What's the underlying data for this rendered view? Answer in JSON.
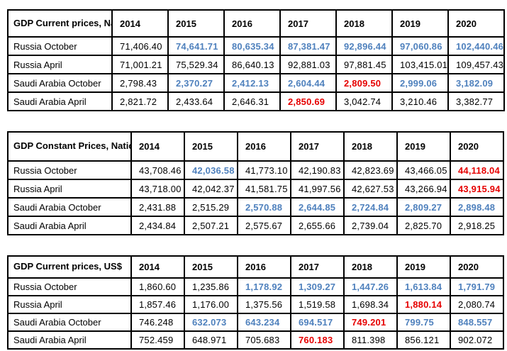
{
  "colors": {
    "revised_value_blue": "#4f81bd",
    "flagged_value_red": "#e60000",
    "default_text": "#000000",
    "table_border": "#000000"
  },
  "style_legend": {
    "k": "black-regular",
    "b": "blue-bold",
    "r": "red-bold"
  },
  "tables": [
    {
      "title": "GDP Current prices,\nNational Currency",
      "years": [
        "2014",
        "2015",
        "2016",
        "2017",
        "2018",
        "2019",
        "2020"
      ],
      "rows": [
        {
          "label": "Russia October",
          "values": [
            "71,406.40",
            "74,641.71",
            "80,635.34",
            "87,381.47",
            "92,896.44",
            "97,060.86",
            "102,440.46"
          ],
          "styles": [
            "k",
            "b",
            "b",
            "b",
            "b",
            "b",
            "b"
          ]
        },
        {
          "label": "Russia April",
          "values": [
            "71,001.21",
            "75,529.34",
            "86,640.13",
            "92,881.03",
            "97,881.45",
            "103,415.01",
            "109,457.43"
          ],
          "styles": [
            "k",
            "k",
            "k",
            "k",
            "k",
            "k",
            "k"
          ]
        },
        {
          "label": "Saudi Arabia October",
          "values": [
            "2,798.43",
            "2,370.27",
            "2,412.13",
            "2,604.44",
            "2,809.50",
            "2,999.06",
            "3,182.09"
          ],
          "styles": [
            "k",
            "b",
            "b",
            "b",
            "r",
            "b",
            "b"
          ]
        },
        {
          "label": "Saudi Arabia April",
          "values": [
            "2,821.72",
            "2,433.64",
            "2,646.31",
            "2,850.69",
            "3,042.74",
            "3,210.46",
            "3,382.77"
          ],
          "styles": [
            "k",
            "k",
            "k",
            "r",
            "k",
            "k",
            "k"
          ]
        }
      ]
    },
    {
      "title": "GDP Constant Prices,\nNational Currency",
      "years": [
        "2014",
        "2015",
        "2016",
        "2017",
        "2018",
        "2019",
        "2020"
      ],
      "rows": [
        {
          "label": "Russia October",
          "values": [
            "43,708.46",
            "42,036.58",
            "41,773.10",
            "42,190.83",
            "42,823.69",
            "43,466.05",
            "44,118.04"
          ],
          "styles": [
            "k",
            "b",
            "k",
            "k",
            "k",
            "k",
            "r"
          ]
        },
        {
          "label": "Russia April",
          "values": [
            "43,718.00",
            "42,042.37",
            "41,581.75",
            "41,997.56",
            "42,627.53",
            "43,266.94",
            "43,915.94"
          ],
          "styles": [
            "k",
            "k",
            "k",
            "k",
            "k",
            "k",
            "r"
          ]
        },
        {
          "label": "Saudi Arabia October",
          "values": [
            "2,431.88",
            "2,515.29",
            "2,570.88",
            "2,644.85",
            "2,724.84",
            "2,809.27",
            "2,898.48"
          ],
          "styles": [
            "k",
            "k",
            "b",
            "b",
            "b",
            "b",
            "b"
          ]
        },
        {
          "label": "Saudi Arabia April",
          "values": [
            "2,434.84",
            "2,507.21",
            "2,575.67",
            "2,655.66",
            "2,739.04",
            "2,825.70",
            "2,918.25"
          ],
          "styles": [
            "k",
            "k",
            "k",
            "k",
            "k",
            "k",
            "k"
          ]
        }
      ]
    },
    {
      "title": "GDP Current prices, US$",
      "years": [
        "2014",
        "2015",
        "2016",
        "2017",
        "2018",
        "2019",
        "2020"
      ],
      "rows": [
        {
          "label": "Russia October",
          "values": [
            "1,860.60",
            "1,235.86",
            "1,178.92",
            "1,309.27",
            "1,447.26",
            "1,613.84",
            "1,791.79"
          ],
          "styles": [
            "k",
            "k",
            "b",
            "b",
            "b",
            "b",
            "b"
          ]
        },
        {
          "label": "Russia April",
          "values": [
            "1,857.46",
            "1,176.00",
            "1,375.56",
            "1,519.58",
            "1,698.34",
            "1,880.14",
            "2,080.74"
          ],
          "styles": [
            "k",
            "k",
            "k",
            "k",
            "k",
            "r",
            "k"
          ]
        },
        {
          "label": "Saudi Arabia October",
          "values": [
            "746.248",
            "632.073",
            "643.234",
            "694.517",
            "749.201",
            "799.75",
            "848.557"
          ],
          "styles": [
            "k",
            "b",
            "b",
            "b",
            "r",
            "b",
            "b"
          ]
        },
        {
          "label": "Saudi Arabia April",
          "values": [
            "752.459",
            "648.971",
            "705.683",
            "760.183",
            "811.398",
            "856.121",
            "902.072"
          ],
          "styles": [
            "k",
            "k",
            "k",
            "r",
            "k",
            "k",
            "k"
          ]
        }
      ]
    }
  ],
  "chart_data": [
    {
      "type": "table",
      "title": "GDP Current prices, National Currency",
      "categories": [
        2014,
        2015,
        2016,
        2017,
        2018,
        2019,
        2020
      ],
      "series": [
        {
          "name": "Russia October",
          "values": [
            71406.4,
            74641.71,
            80635.34,
            87381.47,
            92896.44,
            97060.86,
            102440.46
          ]
        },
        {
          "name": "Russia April",
          "values": [
            71001.21,
            75529.34,
            86640.13,
            92881.03,
            97881.45,
            103415.01,
            109457.43
          ]
        },
        {
          "name": "Saudi Arabia October",
          "values": [
            2798.43,
            2370.27,
            2412.13,
            2604.44,
            2809.5,
            2999.06,
            3182.09
          ]
        },
        {
          "name": "Saudi Arabia April",
          "values": [
            2821.72,
            2433.64,
            2646.31,
            2850.69,
            3042.74,
            3210.46,
            3382.77
          ]
        }
      ]
    },
    {
      "type": "table",
      "title": "GDP Constant Prices, National Currency",
      "categories": [
        2014,
        2015,
        2016,
        2017,
        2018,
        2019,
        2020
      ],
      "series": [
        {
          "name": "Russia October",
          "values": [
            43708.46,
            42036.58,
            41773.1,
            42190.83,
            42823.69,
            43466.05,
            44118.04
          ]
        },
        {
          "name": "Russia April",
          "values": [
            43718.0,
            42042.37,
            41581.75,
            41997.56,
            42627.53,
            43266.94,
            43915.94
          ]
        },
        {
          "name": "Saudi Arabia October",
          "values": [
            2431.88,
            2515.29,
            2570.88,
            2644.85,
            2724.84,
            2809.27,
            2898.48
          ]
        },
        {
          "name": "Saudi Arabia April",
          "values": [
            2434.84,
            2507.21,
            2575.67,
            2655.66,
            2739.04,
            2825.7,
            2918.25
          ]
        }
      ]
    },
    {
      "type": "table",
      "title": "GDP Current prices, US$",
      "categories": [
        2014,
        2015,
        2016,
        2017,
        2018,
        2019,
        2020
      ],
      "series": [
        {
          "name": "Russia October",
          "values": [
            1860.6,
            1235.86,
            1178.92,
            1309.27,
            1447.26,
            1613.84,
            1791.79
          ]
        },
        {
          "name": "Russia April",
          "values": [
            1857.46,
            1176.0,
            1375.56,
            1519.58,
            1698.34,
            1880.14,
            2080.74
          ]
        },
        {
          "name": "Saudi Arabia October",
          "values": [
            746.248,
            632.073,
            643.234,
            694.517,
            749.201,
            799.75,
            848.557
          ]
        },
        {
          "name": "Saudi Arabia April",
          "values": [
            752.459,
            648.971,
            705.683,
            760.183,
            811.398,
            856.121,
            902.072
          ]
        }
      ]
    }
  ]
}
